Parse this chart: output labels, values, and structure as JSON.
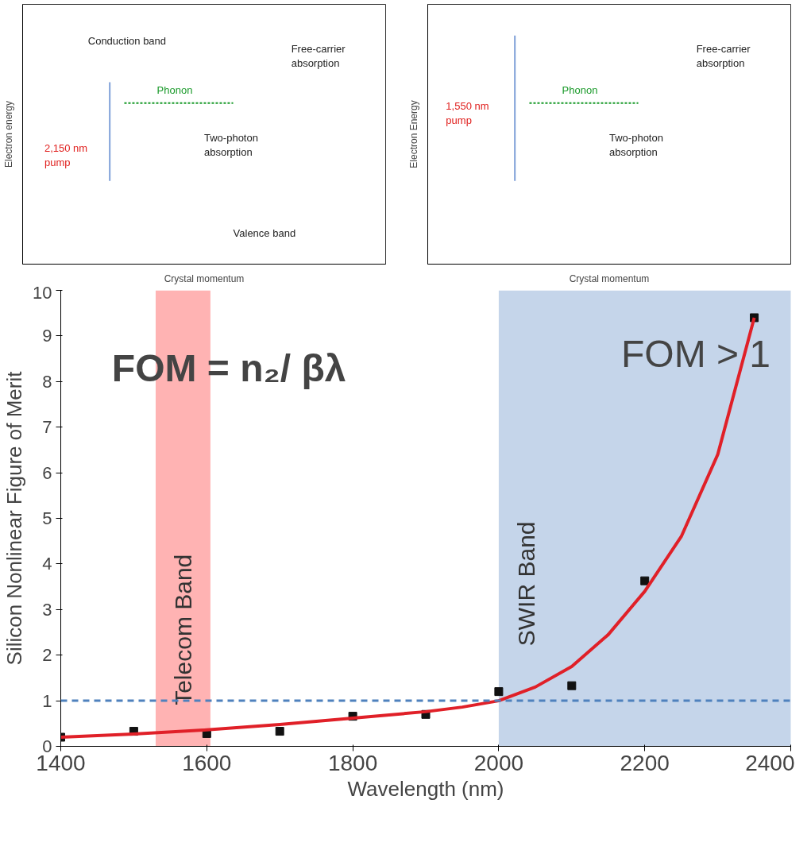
{
  "chart_data": [
    {
      "type": "other",
      "xlabel": "Crystal momentum",
      "ylabel": "Electron energy",
      "annotations": [
        "Conduction band",
        "Free-carrier absorption",
        "Phonon",
        "2,150 nm pump",
        "Two-photon absorption",
        "Valence band"
      ]
    },
    {
      "type": "other",
      "xlabel": "Crystal momentum",
      "ylabel": "Electron Energy",
      "annotations": [
        "Free-carrier absorption",
        "Phonon",
        "1,550 nm pump",
        "Two-photon absorption"
      ]
    },
    {
      "type": "scatter",
      "xlabel": "Wavelength (nm)",
      "ylabel": "Silicon Nonlinear Figure of Merit",
      "xlim": [
        1400,
        2400
      ],
      "ylim": [
        0,
        10
      ],
      "xticks": [
        1400,
        1600,
        1800,
        2000,
        2200,
        2400
      ],
      "yticks": [
        0,
        1,
        2,
        3,
        4,
        5,
        6,
        7,
        8,
        9,
        10
      ],
      "grid": false,
      "marker": "square",
      "series": [
        {
          "type": "scatter",
          "color": "#111111",
          "x": [
            1400,
            1500,
            1600,
            1700,
            1800,
            1900,
            2000,
            2100,
            2200,
            2350
          ],
          "values": [
            0.2,
            0.33,
            0.28,
            0.33,
            0.66,
            0.7,
            1.2,
            1.33,
            3.63,
            9.4
          ]
        },
        {
          "type": "line",
          "color": "#e02028",
          "marker": "none",
          "line_style": "solid",
          "x": [
            1400,
            1500,
            1600,
            1700,
            1800,
            1900,
            1950,
            2000,
            2050,
            2100,
            2150,
            2200,
            2250,
            2300,
            2350
          ],
          "values": [
            0.2,
            0.27,
            0.36,
            0.48,
            0.62,
            0.76,
            0.86,
            1.0,
            1.3,
            1.75,
            2.45,
            3.4,
            4.6,
            6.4,
            9.4
          ]
        }
      ],
      "ref_lines": [
        {
          "axis": "y",
          "value": 1,
          "color": "#4f81bd",
          "line_style": "dashed"
        }
      ],
      "bands": [
        {
          "axis": "x",
          "from": 1530,
          "to": 1605,
          "label": "Telecom Band",
          "color": "#ffb3b3"
        },
        {
          "axis": "x",
          "from": 2000,
          "to": 2405,
          "label": "SWIR Band",
          "color": "#c5d5ea"
        }
      ],
      "annotations": [
        "FOM = n₂/ βλ",
        "FOM > 1"
      ]
    }
  ]
}
